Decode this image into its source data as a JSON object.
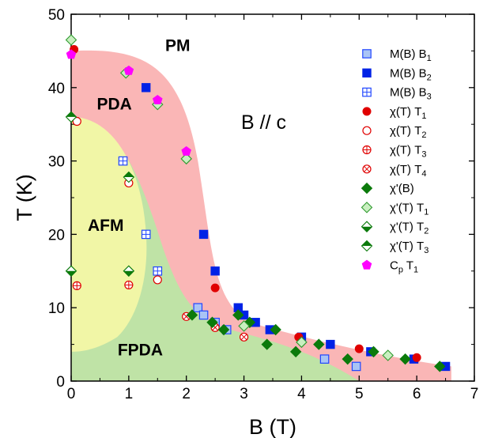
{
  "chart_data": {
    "type": "scatter",
    "title": "",
    "xlabel": "B (T)",
    "ylabel": "T (K)",
    "xlim": [
      0,
      7
    ],
    "ylim": [
      0,
      50
    ],
    "xticks": [
      "0",
      "1",
      "2",
      "3",
      "4",
      "5",
      "6",
      "7"
    ],
    "yticks": [
      "0",
      "10",
      "20",
      "30",
      "40",
      "50"
    ],
    "grid": false,
    "legend": "right",
    "annotation": "B // c",
    "regions": [
      {
        "label": "PM",
        "x": 1.85,
        "y": 45,
        "fill": "none"
      },
      {
        "label": "PDA",
        "x": 0.75,
        "y": 37,
        "fill": "#f9a9a9"
      },
      {
        "label": "AFM",
        "x": 0.6,
        "y": 20.5,
        "fill": "#f6f7a6"
      },
      {
        "label": "FPDA",
        "x": 1.2,
        "y": 3.5,
        "fill": "#bfe3a6"
      }
    ],
    "series": [
      {
        "name": "M(B) B",
        "sub": "1",
        "marker": "square-open",
        "color": "#1f45ff",
        "x": [
          2.2,
          2.3,
          2.5,
          2.7,
          4.4,
          4.95
        ],
        "y": [
          10,
          9,
          8,
          7,
          3,
          2
        ]
      },
      {
        "name": "M(B) B",
        "sub": "2",
        "marker": "square",
        "color": "#0022e6",
        "x": [
          1.3,
          2.3,
          2.5,
          2.9,
          3.0,
          3.2,
          3.45,
          4.0,
          4.5,
          5.2,
          5.95,
          6.5
        ],
        "y": [
          40,
          20,
          15,
          10,
          9,
          8,
          7,
          6,
          5,
          4,
          3,
          2
        ]
      },
      {
        "name": "M(B) B",
        "sub": "3",
        "marker": "square-plus",
        "color": "#1f45ff",
        "x": [
          0.9,
          1.3,
          1.5
        ],
        "y": [
          30,
          20,
          15
        ]
      },
      {
        "name": "χ(T) T",
        "sub": "1",
        "marker": "circle",
        "color": "#e00000",
        "x": [
          0.05,
          2.5,
          3.95,
          5.0,
          6.0
        ],
        "y": [
          45.2,
          12.7,
          6.0,
          4.4,
          3.2
        ]
      },
      {
        "name": "χ(T) T",
        "sub": "2",
        "marker": "circle-open",
        "color": "#e00000",
        "x": [
          0.1,
          1.0,
          1.5
        ],
        "y": [
          35.4,
          27,
          13.8
        ]
      },
      {
        "name": "χ(T) T",
        "sub": "3",
        "marker": "circle-plus",
        "color": "#e00000",
        "x": [
          0.1,
          1.0
        ],
        "y": [
          13,
          13.1
        ]
      },
      {
        "name": "χ(T) T",
        "sub": "4",
        "marker": "circle-x",
        "color": "#e00000",
        "x": [
          2.0,
          2.5,
          3.0
        ],
        "y": [
          8.8,
          7.3,
          6.0
        ]
      },
      {
        "name": "χ'(B)",
        "sub": "",
        "marker": "diamond",
        "color": "#0b7a0b",
        "x": [
          2.1,
          2.45,
          2.65,
          2.9,
          3.1,
          3.4,
          3.55,
          3.9,
          4.3,
          4.8,
          5.25,
          5.8,
          6.4
        ],
        "y": [
          9,
          8,
          7,
          9,
          8,
          5,
          7,
          4,
          5,
          3,
          4,
          3,
          2
        ]
      },
      {
        "name": "χ'(T) T",
        "sub": "1",
        "marker": "diamond-open",
        "color": "#2f9a2f",
        "x": [
          0.0,
          0.95,
          1.5,
          2.0,
          3.0,
          4.0,
          5.5
        ],
        "y": [
          46.5,
          42,
          37.7,
          30.3,
          7.5,
          5.3,
          3.5
        ]
      },
      {
        "name": "χ'(T) T",
        "sub": "2",
        "marker": "diamond-bottom",
        "color": "#0b7a0b",
        "x": [
          0.0,
          1.0
        ],
        "y": [
          15,
          15
        ]
      },
      {
        "name": "χ'(T) T",
        "sub": "3",
        "marker": "diamond-top",
        "color": "#0b7a0b",
        "x": [
          0.0,
          1.0
        ],
        "y": [
          36,
          27.8
        ]
      },
      {
        "name": "C",
        "sub": "p",
        "suffix": " T",
        "suffix_sub": "1",
        "marker": "pentagon",
        "color": "#ff00ff",
        "x": [
          0.0,
          1.0,
          1.5,
          2.0
        ],
        "y": [
          44.5,
          42.3,
          38.3,
          31.3
        ]
      }
    ]
  }
}
